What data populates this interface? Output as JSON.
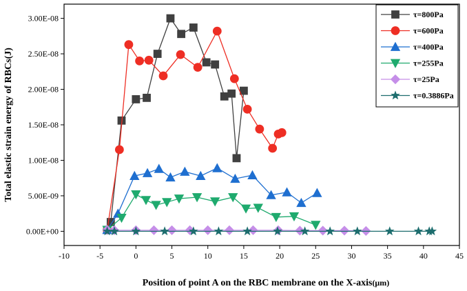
{
  "chart_data": {
    "type": "line",
    "xlabel": "Position of point A on the RBC membrane on the X-axis",
    "xunit": "(μm)",
    "ylabel": "Total elastic strain energy of RBCs(J)",
    "xlim": [
      -10,
      45
    ],
    "ylim": [
      -2e-09,
      3.2e-08
    ],
    "xticks": [
      -10,
      -5,
      0,
      5,
      10,
      15,
      20,
      25,
      30,
      35,
      40,
      45
    ],
    "yticks": [
      0,
      5e-09,
      1e-08,
      1.5e-08,
      2e-08,
      2.5e-08,
      3e-08
    ],
    "ytick_labels": [
      "0.00E+00",
      "5.00E-09",
      "1.00E-08",
      "1.50E-08",
      "2.00E-08",
      "2.50E-08",
      "3.00E-08"
    ],
    "legend_position": "top-right",
    "grid": false,
    "series": [
      {
        "name": "τ=800Pa",
        "color": "#404040",
        "marker": "square",
        "x": [
          -4,
          -3.5,
          -2,
          0,
          1.5,
          3,
          4.8,
          6.3,
          8,
          9.8,
          11,
          12.3,
          13.3,
          14,
          15
        ],
        "y": [
          2e-10,
          1.3e-09,
          1.56e-08,
          1.86e-08,
          1.88e-08,
          2.5e-08,
          3e-08,
          2.78e-08,
          2.87e-08,
          2.38e-08,
          2.35e-08,
          1.9e-08,
          1.94e-08,
          1.03e-08,
          1.98e-08
        ]
      },
      {
        "name": "τ=600Pa",
        "color": "#ee2e24",
        "marker": "circle",
        "x": [
          -4,
          -2.3,
          -1,
          0.5,
          1.8,
          3.8,
          6.2,
          8.6,
          11.3,
          13.7,
          15.5,
          17.2,
          19,
          19.8,
          20.3
        ],
        "y": [
          2e-10,
          1.15e-08,
          2.63e-08,
          2.4e-08,
          2.41e-08,
          2.19e-08,
          2.49e-08,
          2.31e-08,
          2.82e-08,
          2.15e-08,
          1.72e-08,
          1.44e-08,
          1.17e-08,
          1.37e-08,
          1.39e-08
        ]
      },
      {
        "name": "τ=400Pa",
        "color": "#1f6fd0",
        "marker": "triangle-up",
        "x": [
          -4,
          -2.5,
          -0.2,
          1.6,
          3.2,
          4.8,
          6.8,
          9,
          11.3,
          13.8,
          16.2,
          18.8,
          21,
          23,
          25.2
        ],
        "y": [
          2e-10,
          2.5e-09,
          7.8e-09,
          8.2e-09,
          8.8e-09,
          7.6e-09,
          8.4e-09,
          7.8e-09,
          8.9e-09,
          7.4e-09,
          7.9e-09,
          5.1e-09,
          5.5e-09,
          4e-09,
          5.4e-09
        ]
      },
      {
        "name": "τ=255Pa",
        "color": "#1faa6e",
        "marker": "triangle-down",
        "x": [
          -4,
          -2,
          0,
          1.4,
          2.8,
          4.3,
          6,
          8.5,
          11,
          13.5,
          15.3,
          17,
          19.5,
          22,
          25
        ],
        "y": [
          2e-10,
          1.9e-09,
          5.2e-09,
          4.4e-09,
          3.7e-09,
          4.1e-09,
          4.6e-09,
          4.8e-09,
          4.2e-09,
          4.8e-09,
          3.2e-09,
          3.3e-09,
          2e-09,
          2.1e-09,
          9e-10
        ]
      },
      {
        "name": "τ=25Pa",
        "color": "#c58ee8",
        "marker": "diamond",
        "x": [
          -4,
          -3,
          0,
          2.5,
          5,
          7.5,
          10,
          13,
          16.3,
          19.8,
          22.8,
          26,
          29,
          32
        ],
        "y": [
          2e-10,
          1.5e-10,
          1.5e-10,
          1.5e-10,
          1.5e-10,
          1.5e-10,
          1.5e-10,
          1.5e-10,
          1.5e-10,
          1.5e-10,
          1e-10,
          1e-10,
          1e-10,
          5e-11
        ]
      },
      {
        "name": "τ=0.3886Pa",
        "color": "#1d6d6e",
        "marker": "star",
        "x": [
          -4,
          -3,
          0,
          4,
          8,
          11.5,
          15.5,
          19.7,
          23.5,
          27,
          30.8,
          35.3,
          39.3,
          40.8,
          41.2
        ],
        "y": [
          0,
          0,
          0,
          0,
          0,
          0,
          0,
          0,
          0,
          0,
          0,
          0,
          0,
          0,
          0
        ]
      }
    ]
  }
}
